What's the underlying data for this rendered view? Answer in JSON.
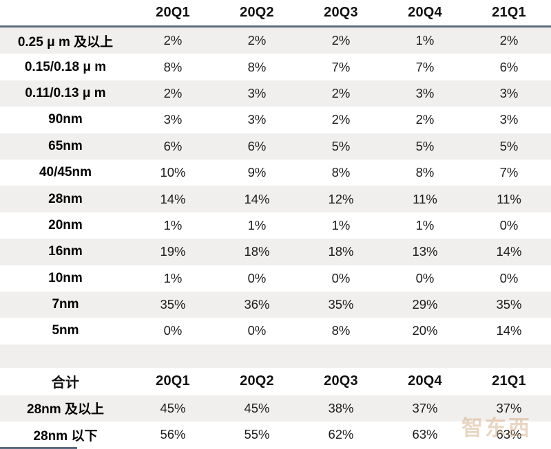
{
  "colors": {
    "header_border": "#5a6b80",
    "alt_row_bg": "#f0efed",
    "watermark_color": "#cfa57a"
  },
  "table": {
    "columns": [
      "20Q1",
      "20Q2",
      "20Q3",
      "20Q4",
      "21Q1"
    ],
    "rows": [
      {
        "label": "0.25 μ m 及以上",
        "values": [
          "2%",
          "2%",
          "2%",
          "1%",
          "2%"
        ]
      },
      {
        "label": "0.15/0.18 μ m",
        "values": [
          "8%",
          "8%",
          "7%",
          "7%",
          "6%"
        ]
      },
      {
        "label": "0.11/0.13 μ m",
        "values": [
          "2%",
          "3%",
          "2%",
          "3%",
          "3%"
        ]
      },
      {
        "label": "90nm",
        "values": [
          "3%",
          "3%",
          "2%",
          "2%",
          "3%"
        ]
      },
      {
        "label": "65nm",
        "values": [
          "6%",
          "6%",
          "5%",
          "5%",
          "5%"
        ]
      },
      {
        "label": "40/45nm",
        "values": [
          "10%",
          "9%",
          "8%",
          "8%",
          "7%"
        ]
      },
      {
        "label": "28nm",
        "values": [
          "14%",
          "14%",
          "12%",
          "11%",
          "11%"
        ]
      },
      {
        "label": "20nm",
        "values": [
          "1%",
          "1%",
          "1%",
          "1%",
          "0%"
        ]
      },
      {
        "label": "16nm",
        "values": [
          "19%",
          "18%",
          "18%",
          "13%",
          "14%"
        ]
      },
      {
        "label": "10nm",
        "values": [
          "1%",
          "0%",
          "0%",
          "0%",
          "0%"
        ]
      },
      {
        "label": "7nm",
        "values": [
          "35%",
          "36%",
          "35%",
          "29%",
          "35%"
        ]
      },
      {
        "label": "5nm",
        "values": [
          "0%",
          "0%",
          "8%",
          "20%",
          "14%"
        ]
      }
    ],
    "totals_label": "合计",
    "totals": [
      {
        "label": "28nm 及以上",
        "values": [
          "45%",
          "45%",
          "38%",
          "37%",
          "37%"
        ]
      },
      {
        "label": "28nm 以下",
        "values": [
          "56%",
          "55%",
          "62%",
          "63%",
          "63%"
        ]
      }
    ]
  },
  "watermark": {
    "text": "智东西"
  },
  "chart_data": {
    "type": "table",
    "title": "",
    "columns": [
      "20Q1",
      "20Q2",
      "20Q3",
      "20Q4",
      "21Q1"
    ],
    "unit": "%",
    "series": [
      {
        "name": "0.25μm及以上",
        "values": [
          2,
          2,
          2,
          1,
          2
        ]
      },
      {
        "name": "0.15/0.18μm",
        "values": [
          8,
          8,
          7,
          7,
          6
        ]
      },
      {
        "name": "0.11/0.13μm",
        "values": [
          2,
          3,
          2,
          3,
          3
        ]
      },
      {
        "name": "90nm",
        "values": [
          3,
          3,
          2,
          2,
          3
        ]
      },
      {
        "name": "65nm",
        "values": [
          6,
          6,
          5,
          5,
          5
        ]
      },
      {
        "name": "40/45nm",
        "values": [
          10,
          9,
          8,
          8,
          7
        ]
      },
      {
        "name": "28nm",
        "values": [
          14,
          14,
          12,
          11,
          11
        ]
      },
      {
        "name": "20nm",
        "values": [
          1,
          1,
          1,
          1,
          0
        ]
      },
      {
        "name": "16nm",
        "values": [
          19,
          18,
          18,
          13,
          14
        ]
      },
      {
        "name": "10nm",
        "values": [
          1,
          0,
          0,
          0,
          0
        ]
      },
      {
        "name": "7nm",
        "values": [
          35,
          36,
          35,
          29,
          35
        ]
      },
      {
        "name": "5nm",
        "values": [
          0,
          0,
          8,
          20,
          14
        ]
      }
    ],
    "totals": [
      {
        "name": "28nm及以上",
        "values": [
          45,
          45,
          38,
          37,
          37
        ]
      },
      {
        "name": "28nm以下",
        "values": [
          56,
          55,
          62,
          63,
          63
        ]
      }
    ]
  }
}
